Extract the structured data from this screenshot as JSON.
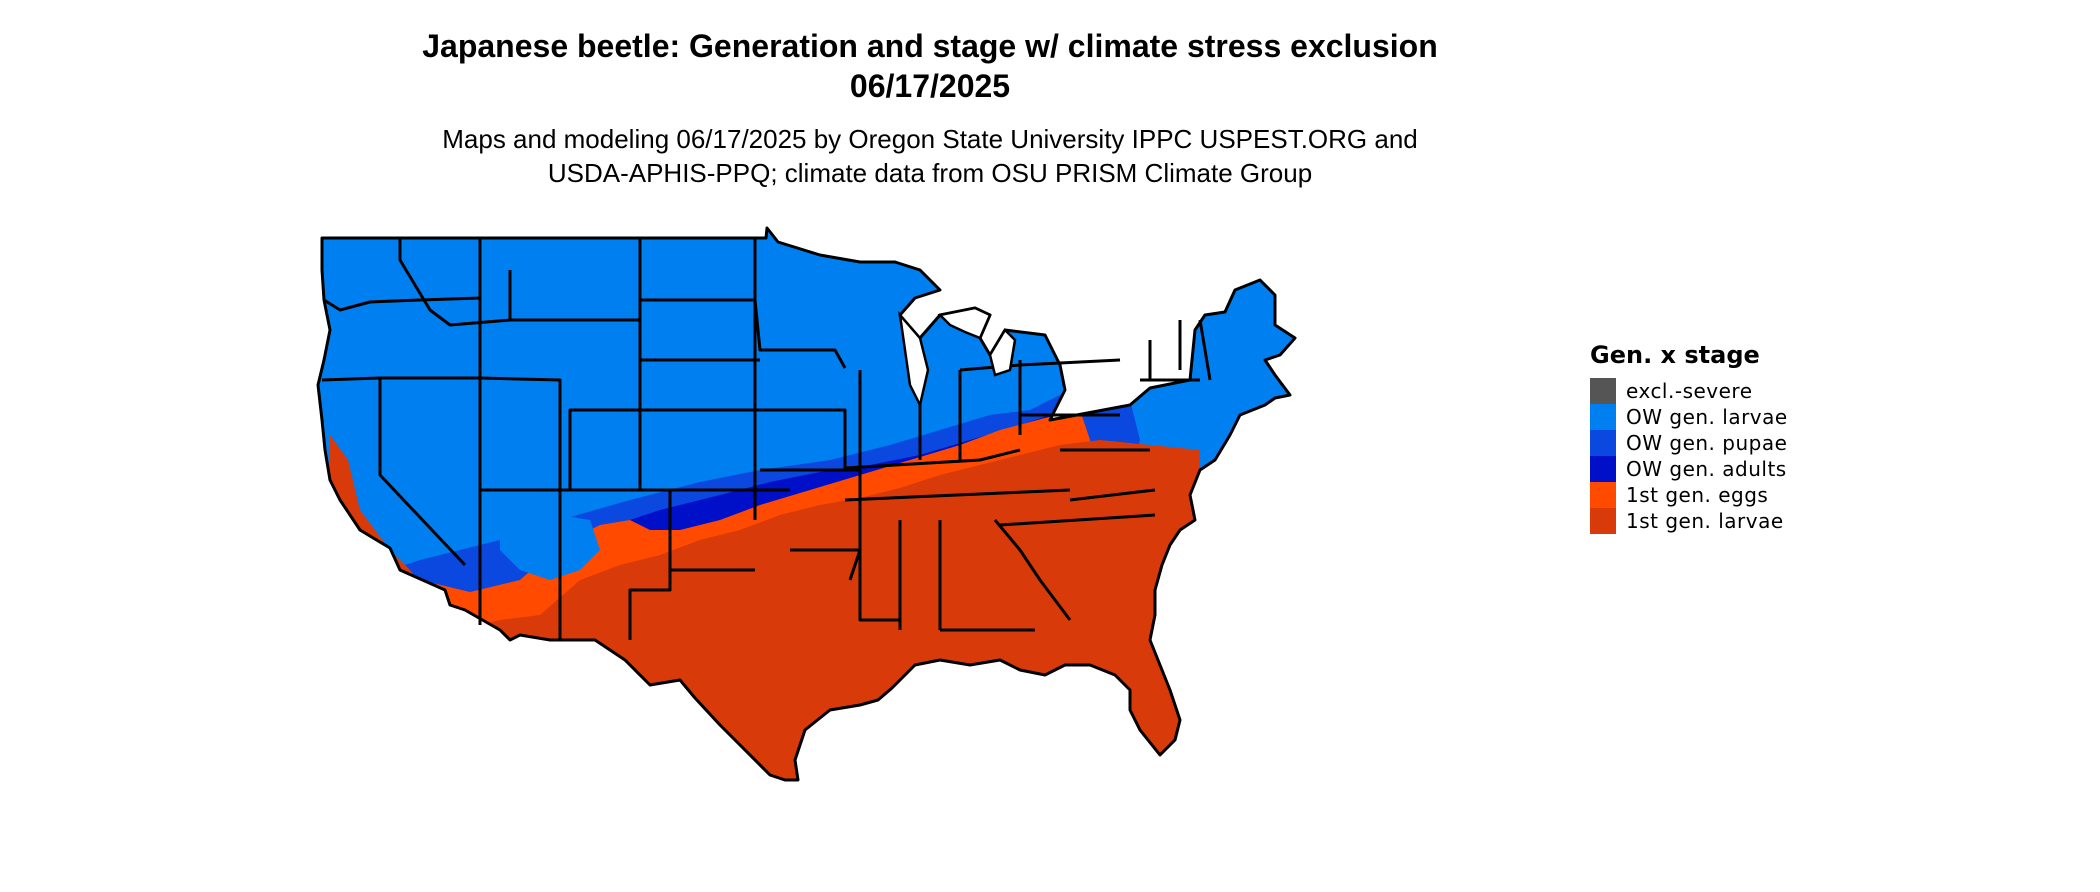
{
  "title": {
    "line1": "Japanese beetle: Generation and stage w/ climate stress exclusion",
    "line2": "06/17/2025"
  },
  "subtitle": {
    "line1": "Maps and modeling 06/17/2025 by Oregon State University IPPC USPEST.ORG and",
    "line2": "USDA-APHIS-PPQ; climate data from OSU PRISM Climate Group"
  },
  "legend": {
    "title": "Gen. x stage",
    "items": [
      {
        "label": "excl.-severe",
        "color": "#555555"
      },
      {
        "label": "OW gen. larvae",
        "color": "#0080f0"
      },
      {
        "label": "OW gen. pupae",
        "color": "#0a48e0"
      },
      {
        "label": "OW gen. adults",
        "color": "#0010c8"
      },
      {
        "label": "1st gen. eggs",
        "color": "#ff4a00"
      },
      {
        "label": "1st gen. larvae",
        "color": "#d83a0a"
      }
    ]
  }
}
